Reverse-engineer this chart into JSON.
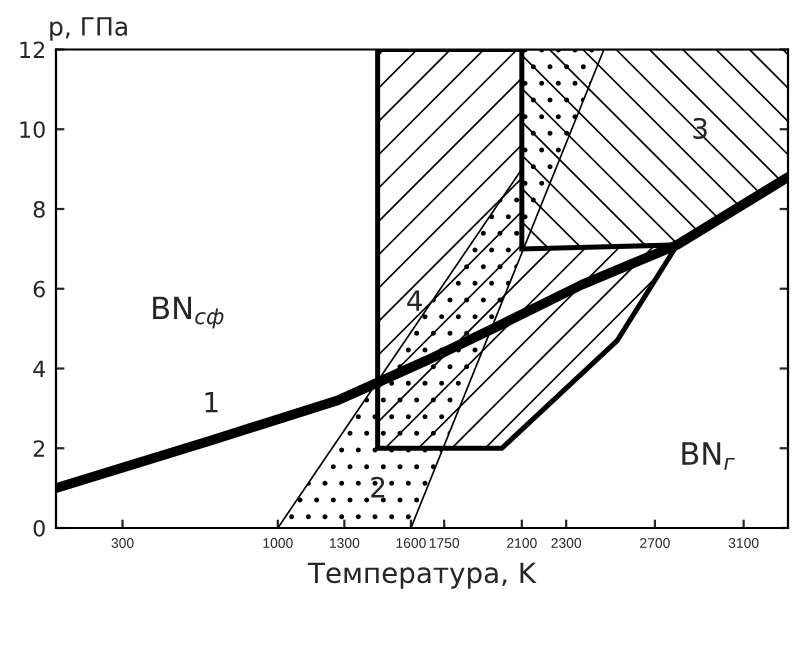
{
  "chart_data": {
    "type": "line",
    "xlabel": "Температура, K",
    "ylabel": "p, ГПа",
    "xlim": [
      0,
      3300
    ],
    "xticks": [
      300,
      1000,
      1300,
      1600,
      1750,
      2100,
      2300,
      2700,
      3100
    ],
    "ylim": [
      0,
      12
    ],
    "yticks": [
      0,
      2,
      4,
      6,
      8,
      10,
      12
    ],
    "grid": false,
    "legend": false,
    "series": [
      {
        "type": "area",
        "color": "#000000",
        "x": [
          1000,
          1600,
          2470,
          2100,
          2100
        ],
        "values": [
          0,
          0,
          12,
          12,
          9
        ]
      },
      {
        "type": "area",
        "color": "#000000",
        "x": [
          2100,
          3300,
          3300,
          2800,
          2100
        ],
        "values": [
          12,
          12,
          8.8,
          7.1,
          7
        ]
      },
      {
        "type": "area",
        "color": "#000000",
        "x": [
          1450,
          1450,
          2010,
          2530,
          2800,
          2100,
          2100
        ],
        "values": [
          12,
          2,
          2,
          4.7,
          7.1,
          7,
          12
        ]
      },
      {
        "color": "#000000",
        "x": [
          0,
          700,
          1270,
          1430,
          1670,
          1970,
          2370,
          2800,
          3300
        ],
        "values": [
          1.0,
          2.2,
          3.2,
          3.6,
          4.2,
          5.0,
          6.1,
          7.1,
          8.8
        ]
      }
    ],
    "annotations": [
      {
        "text": "1",
        "x": 700,
        "y": 2.2
      },
      "2",
      "3",
      "4",
      "BN$_{сф}$",
      "BN$_{г}$"
    ]
  }
}
